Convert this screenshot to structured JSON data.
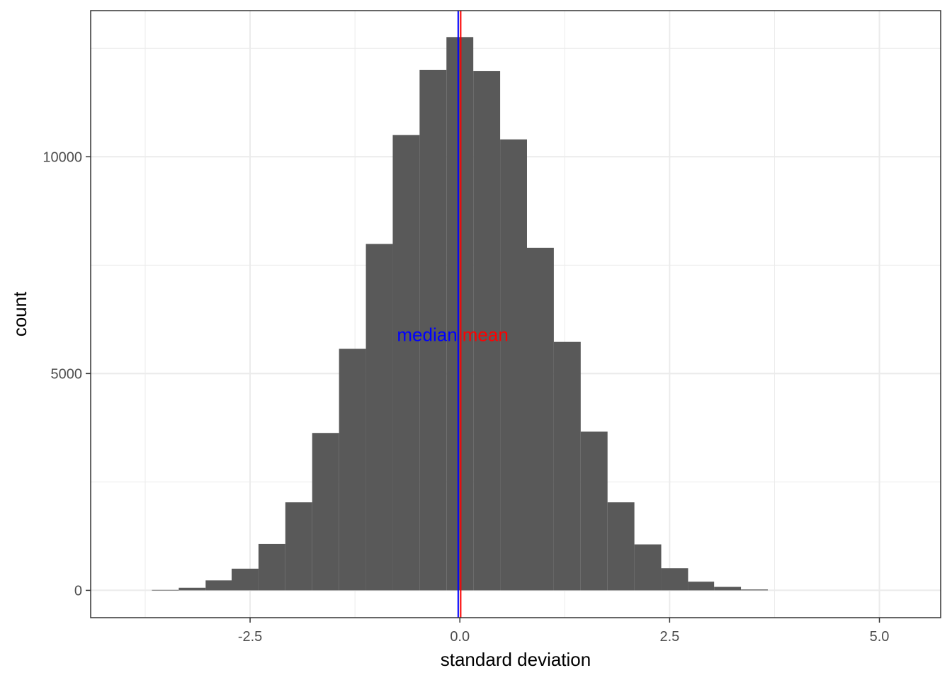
{
  "chart_data": {
    "type": "histogram",
    "title": "",
    "xlabel": "standard deviation",
    "ylabel": "count",
    "xlim": [
      -4.4,
      5.73
    ],
    "ylim": [
      -630,
      13370
    ],
    "x_ticks": [
      {
        "value": -2.5,
        "label": "-2.5"
      },
      {
        "value": 0.0,
        "label": "0.0"
      },
      {
        "value": 2.5,
        "label": "2.5"
      },
      {
        "value": 5.0,
        "label": "5.0"
      }
    ],
    "y_ticks": [
      {
        "value": 0,
        "label": "0"
      },
      {
        "value": 5000,
        "label": "5000"
      },
      {
        "value": 10000,
        "label": "10000"
      }
    ],
    "x_minor_breaks": [
      -3.75,
      -1.25,
      1.25,
      3.75
    ],
    "y_minor_breaks": [
      2500,
      7500,
      12500
    ],
    "grid": true,
    "bar_color": "#595959",
    "bins": [
      {
        "x0": -3.67,
        "x1": -3.35,
        "count": 10
      },
      {
        "x0": -3.35,
        "x1": -3.03,
        "count": 60
      },
      {
        "x0": -3.03,
        "x1": -2.72,
        "count": 230
      },
      {
        "x0": -2.72,
        "x1": -2.4,
        "count": 500
      },
      {
        "x0": -2.4,
        "x1": -2.08,
        "count": 1070
      },
      {
        "x0": -2.08,
        "x1": -1.76,
        "count": 2030
      },
      {
        "x0": -1.76,
        "x1": -1.44,
        "count": 3630
      },
      {
        "x0": -1.44,
        "x1": -1.12,
        "count": 5570
      },
      {
        "x0": -1.12,
        "x1": -0.8,
        "count": 7990
      },
      {
        "x0": -0.8,
        "x1": -0.48,
        "count": 10500
      },
      {
        "x0": -0.48,
        "x1": -0.16,
        "count": 12000
      },
      {
        "x0": -0.16,
        "x1": 0.16,
        "count": 12760
      },
      {
        "x0": 0.16,
        "x1": 0.48,
        "count": 11980
      },
      {
        "x0": 0.48,
        "x1": 0.8,
        "count": 10400
      },
      {
        "x0": 0.8,
        "x1": 1.12,
        "count": 7900
      },
      {
        "x0": 1.12,
        "x1": 1.44,
        "count": 5730
      },
      {
        "x0": 1.44,
        "x1": 1.76,
        "count": 3660
      },
      {
        "x0": 1.76,
        "x1": 2.08,
        "count": 2030
      },
      {
        "x0": 2.08,
        "x1": 2.4,
        "count": 1060
      },
      {
        "x0": 2.4,
        "x1": 2.72,
        "count": 510
      },
      {
        "x0": 2.72,
        "x1": 3.03,
        "count": 200
      },
      {
        "x0": 3.03,
        "x1": 3.35,
        "count": 80
      },
      {
        "x0": 3.35,
        "x1": 3.67,
        "count": 20
      }
    ],
    "vlines": [
      {
        "name": "median",
        "x": -0.02,
        "color": "#0000ff"
      },
      {
        "name": "mean",
        "x": 0.01,
        "color": "#ff0000"
      }
    ],
    "annotations": [
      {
        "text": "median",
        "x": -0.03,
        "y": 5900,
        "color": "#0000ff",
        "anchor": "end"
      },
      {
        "text": "mean",
        "x": 0.03,
        "y": 5900,
        "color": "#ff0000",
        "anchor": "start"
      }
    ]
  }
}
